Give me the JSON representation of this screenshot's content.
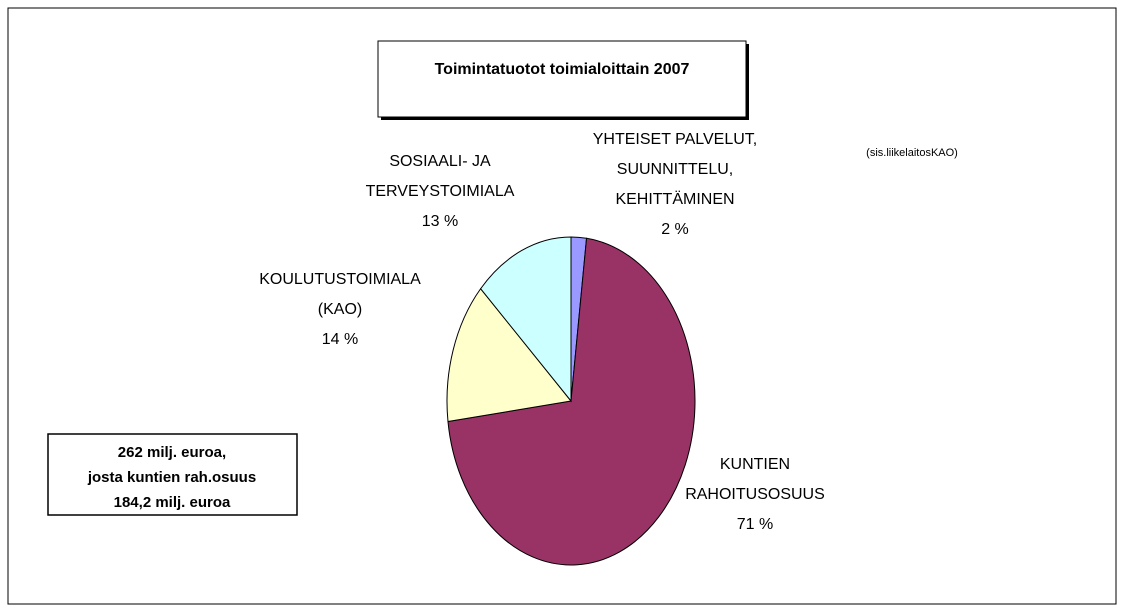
{
  "chart_data": {
    "type": "pie",
    "title": "Toimintatuotot toimialoittain 2007",
    "note": "(sis.liikelaitosKAO)",
    "info_box": [
      "262 milj. euroa,",
      "josta kuntien rah.osuus",
      "184,2 milj. euroa"
    ],
    "categories": [
      [
        "YHTEISET PALVELUT,",
        "SUUNNITTELU,",
        "KEHITTÄMINEN"
      ],
      [
        "KUNTIEN",
        "RAHOITUSOSUUS"
      ],
      [
        "KOULUTUSTOIMIALA",
        "(KAO)"
      ],
      [
        "SOSIAALI-  JA",
        "TERVEYSTOIMIALA"
      ]
    ],
    "values": [
      2,
      71,
      14,
      13
    ],
    "value_labels": [
      "2 %",
      "71 %",
      "14 %",
      "13 %"
    ],
    "colors": [
      "#9999ff",
      "#993366",
      "#ffffcc",
      "#ccffff"
    ]
  }
}
